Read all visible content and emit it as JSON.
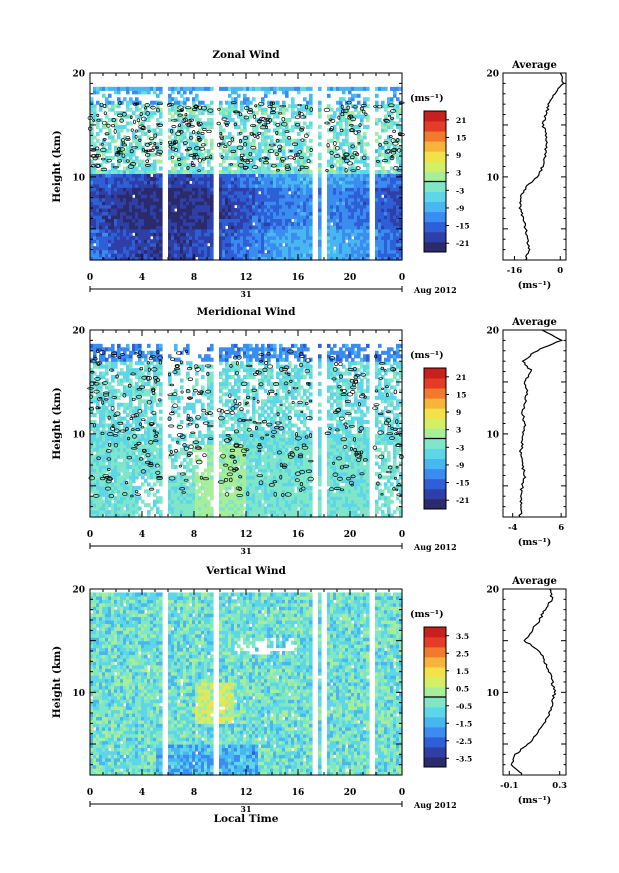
{
  "chart_data": [
    {
      "type": "heatmap",
      "title": "Zonal Wind",
      "ylabel": "Height (km)",
      "ylim": [
        2,
        20
      ],
      "yticks": [
        "20",
        "10"
      ],
      "xlim": [
        0,
        24
      ],
      "xticks": [
        "0",
        "4",
        "8",
        "12",
        "16",
        "20",
        "0"
      ],
      "date_day": "31",
      "date_label": "Aug 2012",
      "colorbar": {
        "unit": "(ms⁻¹)",
        "ticks": [
          "21",
          "15",
          "9",
          "3",
          "-3",
          "-9",
          "-15",
          "-21"
        ],
        "range": [
          -24,
          24
        ],
        "colors": [
          "#2b2a6b",
          "#2e3fa8",
          "#2f5fd6",
          "#3a8cf0",
          "#48b6f0",
          "#5dd6e8",
          "#7fe6c8",
          "#a6ee9a",
          "#d3ef66",
          "#f2e24a",
          "#f6b53a",
          "#f27a2e",
          "#e63b26",
          "#c8201e"
        ]
      },
      "average": {
        "title": "Average",
        "xlabel": "(ms⁻¹)",
        "xticks": [
          "-16",
          "0"
        ],
        "xlim": [
          -20,
          2
        ],
        "heights": [
          2,
          3,
          4,
          5,
          6,
          7,
          8,
          9,
          10,
          11,
          12,
          13,
          14,
          15,
          16,
          17,
          18,
          19,
          20
        ],
        "values": [
          -12,
          -11,
          -11.5,
          -12,
          -13,
          -14,
          -14,
          -12,
          -8,
          -6,
          -5,
          -5,
          -5,
          -6,
          -5,
          -4,
          -2,
          1,
          0
        ]
      }
    },
    {
      "type": "heatmap",
      "title": "Meridional Wind",
      "ylabel": "Height (km)",
      "ylim": [
        2,
        20
      ],
      "yticks": [
        "20",
        "10"
      ],
      "xlim": [
        0,
        24
      ],
      "xticks": [
        "0",
        "4",
        "8",
        "12",
        "16",
        "20",
        "0"
      ],
      "date_day": "31",
      "date_label": "Aug 2012",
      "colorbar": {
        "unit": "(ms⁻¹)",
        "ticks": [
          "21",
          "15",
          "9",
          "3",
          "-3",
          "-9",
          "-15",
          "-21"
        ],
        "range": [
          -24,
          24
        ],
        "colors": [
          "#2b2a6b",
          "#2e3fa8",
          "#2f5fd6",
          "#3a8cf0",
          "#48b6f0",
          "#5dd6e8",
          "#7fe6c8",
          "#a6ee9a",
          "#d3ef66",
          "#f2e24a",
          "#f6b53a",
          "#f27a2e",
          "#e63b26",
          "#c8201e"
        ]
      },
      "average": {
        "title": "Average",
        "xlabel": "(ms⁻¹)",
        "xticks": [
          "-4",
          "6"
        ],
        "xlim": [
          -6,
          7
        ],
        "heights": [
          2,
          3,
          4,
          5,
          6,
          7,
          8,
          9,
          10,
          11,
          12,
          13,
          14,
          15,
          16,
          17,
          18,
          19,
          20
        ],
        "values": [
          -2.5,
          -2,
          -2.5,
          -2,
          -1.5,
          -2,
          -2.5,
          -2,
          -2,
          -1.5,
          -2,
          -1.5,
          -1,
          -1.5,
          0,
          -2,
          1,
          6,
          2
        ]
      }
    },
    {
      "type": "heatmap",
      "title": "Vertical Wind",
      "ylabel": "Height (km)",
      "ylim": [
        2,
        20
      ],
      "yticks": [
        "20",
        "10"
      ],
      "xlim": [
        0,
        24
      ],
      "xticks": [
        "0",
        "4",
        "8",
        "12",
        "16",
        "20",
        "0"
      ],
      "date_day": "31",
      "date_label": "Aug 2012",
      "xlabel": "Local Time",
      "colorbar": {
        "unit": "(ms⁻¹)",
        "ticks": [
          "3.5",
          "2.5",
          "1.5",
          "0.5",
          "-0.5",
          "-1.5",
          "-2.5",
          "-3.5"
        ],
        "range": [
          -4,
          4
        ],
        "colors": [
          "#2b2a6b",
          "#2e3fa8",
          "#2f5fd6",
          "#3a8cf0",
          "#48b6f0",
          "#5dd6e8",
          "#7fe6c8",
          "#a6ee9a",
          "#d3ef66",
          "#f2e24a",
          "#f6b53a",
          "#f27a2e",
          "#e63b26",
          "#c8201e"
        ]
      },
      "average": {
        "title": "Average",
        "xlabel": "(ms⁻¹)",
        "xticks": [
          "-0.1",
          "0.3"
        ],
        "xlim": [
          -0.15,
          0.35
        ],
        "heights": [
          2,
          3,
          4,
          5,
          6,
          7,
          8,
          9,
          10,
          11,
          12,
          13,
          14,
          15,
          16,
          17,
          18,
          19,
          20
        ],
        "values": [
          0.0,
          -0.08,
          -0.05,
          0.05,
          0.12,
          0.18,
          0.22,
          0.24,
          0.26,
          0.24,
          0.22,
          0.18,
          0.14,
          0.02,
          0.08,
          0.14,
          0.18,
          0.24,
          0.22
        ]
      }
    }
  ]
}
